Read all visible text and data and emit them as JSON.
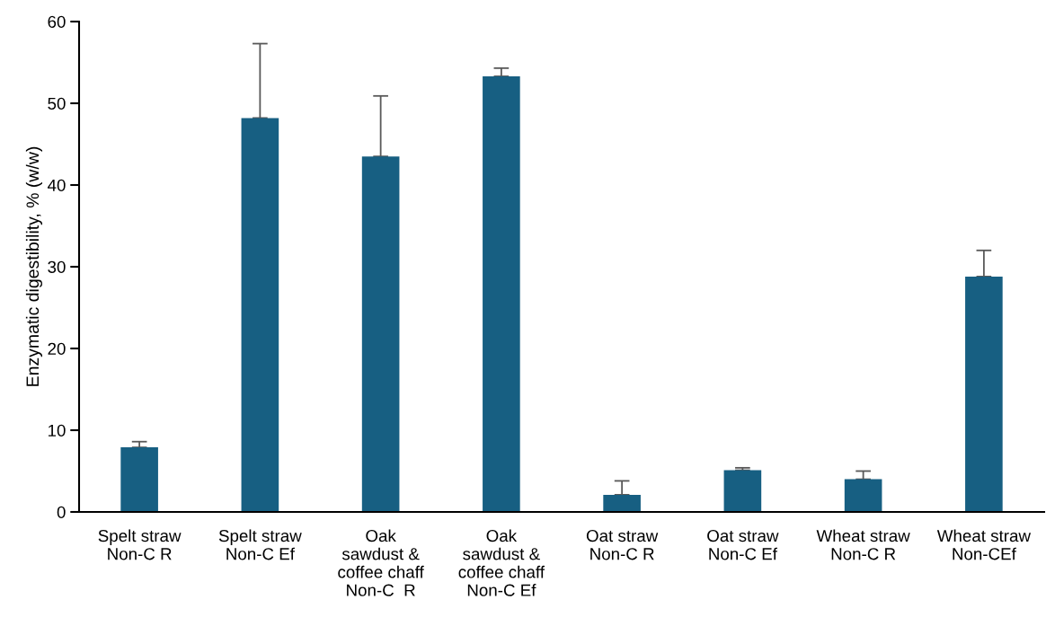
{
  "chart_data": {
    "type": "bar",
    "ylabel": "Enzymatic digestibility, % (w/w)",
    "categories": [
      "Spelt straw\nNon-C R",
      "Spelt straw\nNon-C Ef",
      "Oak\nsawdust &\ncoffee chaff\nNon-C  R",
      "Oak\nsawdust &\ncoffee chaff\nNon-C Ef",
      "Oat straw\nNon-C R",
      "Oat straw\nNon-C Ef",
      "Wheat straw\nNon-C R",
      "Wheat straw\nNon-CEf"
    ],
    "values": [
      7.9,
      48.2,
      43.5,
      53.3,
      2.1,
      5.1,
      4.0,
      28.8
    ],
    "errors": [
      [
        7.9,
        8.6
      ],
      [
        48.2,
        57.3
      ],
      [
        43.5,
        50.9
      ],
      [
        53.3,
        54.3
      ],
      [
        2.1,
        3.8
      ],
      [
        5.1,
        5.4
      ],
      [
        4.0,
        5.0
      ],
      [
        28.8,
        32.0
      ]
    ],
    "color": "#175f82",
    "ylim": [
      0,
      60
    ],
    "yticks": [
      0,
      10,
      20,
      30,
      40,
      50,
      60
    ],
    "grid": false,
    "legend": false
  }
}
